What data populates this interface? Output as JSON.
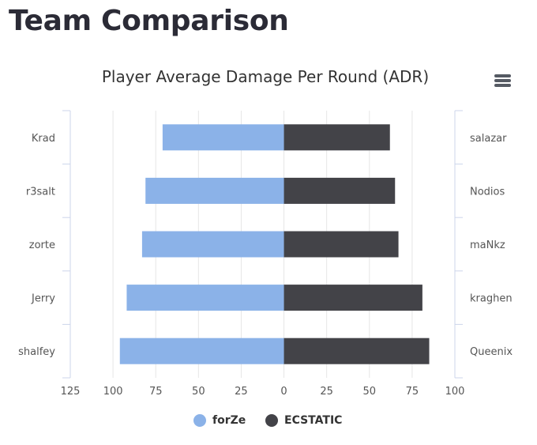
{
  "page": {
    "heading": "Team Comparison"
  },
  "menu": {
    "icon": "hamburger-menu-icon"
  },
  "chart_data": {
    "type": "bar",
    "orientation": "horizontal",
    "layout": "diverging (back-to-back)",
    "title": "Player Average Damage Per Round (ADR)",
    "xlim": [
      -125,
      100
    ],
    "x_ticks": [
      -125,
      -100,
      -75,
      -50,
      -25,
      0,
      25,
      50,
      75,
      100
    ],
    "x_tick_labels": [
      "125",
      "100",
      "75",
      "50",
      "25",
      "0",
      "25",
      "50",
      "75",
      "100"
    ],
    "grid": true,
    "legend_position": "bottom-center",
    "series": [
      {
        "name": "forZe",
        "color": "#8bb2e8",
        "side": "left",
        "categories": [
          "Krad",
          "r3salt",
          "zorte",
          "Jerry",
          "shalfey"
        ],
        "values": [
          71,
          81,
          83,
          92,
          96
        ]
      },
      {
        "name": "ECSTATIC",
        "color": "#434348",
        "side": "right",
        "categories": [
          "salazar",
          "Nodios",
          "maNkz",
          "kraghen",
          "Queenix"
        ],
        "values": [
          62,
          65,
          67,
          81,
          85
        ]
      }
    ]
  }
}
